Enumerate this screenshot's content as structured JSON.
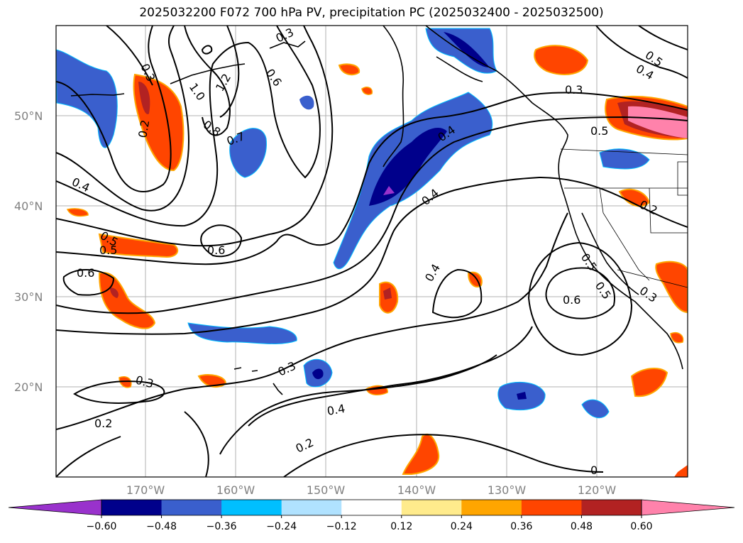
{
  "title": "2025032200 F072 700 hPa PV, precipitation PC (2025032400 - 2025032500)",
  "map": {
    "lat_ticks": [
      "50°N",
      "40°N",
      "30°N",
      "20°N"
    ],
    "lon_ticks": [
      "170°W",
      "160°W",
      "150°W",
      "140°W",
      "130°W",
      "120°W"
    ]
  },
  "colorbar": {
    "ticks": [
      "−0.60",
      "−0.48",
      "−0.36",
      "−0.24",
      "−0.12",
      "0.12",
      "0.24",
      "0.36",
      "0.48",
      "0.60"
    ],
    "colors": [
      "#9932cc",
      "#00008b",
      "#3a5fcd",
      "#00bfff",
      "#b0e2ff",
      "#ffffff",
      "#ffeb8c",
      "#ffa500",
      "#ff4500",
      "#b22222",
      "#ff82ab"
    ]
  },
  "contour_labels": [
    "0.3",
    "0.2",
    "1.0",
    "1.2",
    "0.6",
    "0.8",
    "0.7",
    "0.4",
    "0.5",
    "0.5",
    "0.6",
    "0.6",
    "0.4",
    "0.3",
    "0.4",
    "0.2",
    "0.3",
    "0.2",
    "0.4",
    "0.5",
    "0.3",
    "0.6",
    "0.4",
    "0.5",
    "0.5",
    "0.3",
    "0.4",
    "0.5",
    "0.2",
    "0.3",
    "0"
  ]
}
